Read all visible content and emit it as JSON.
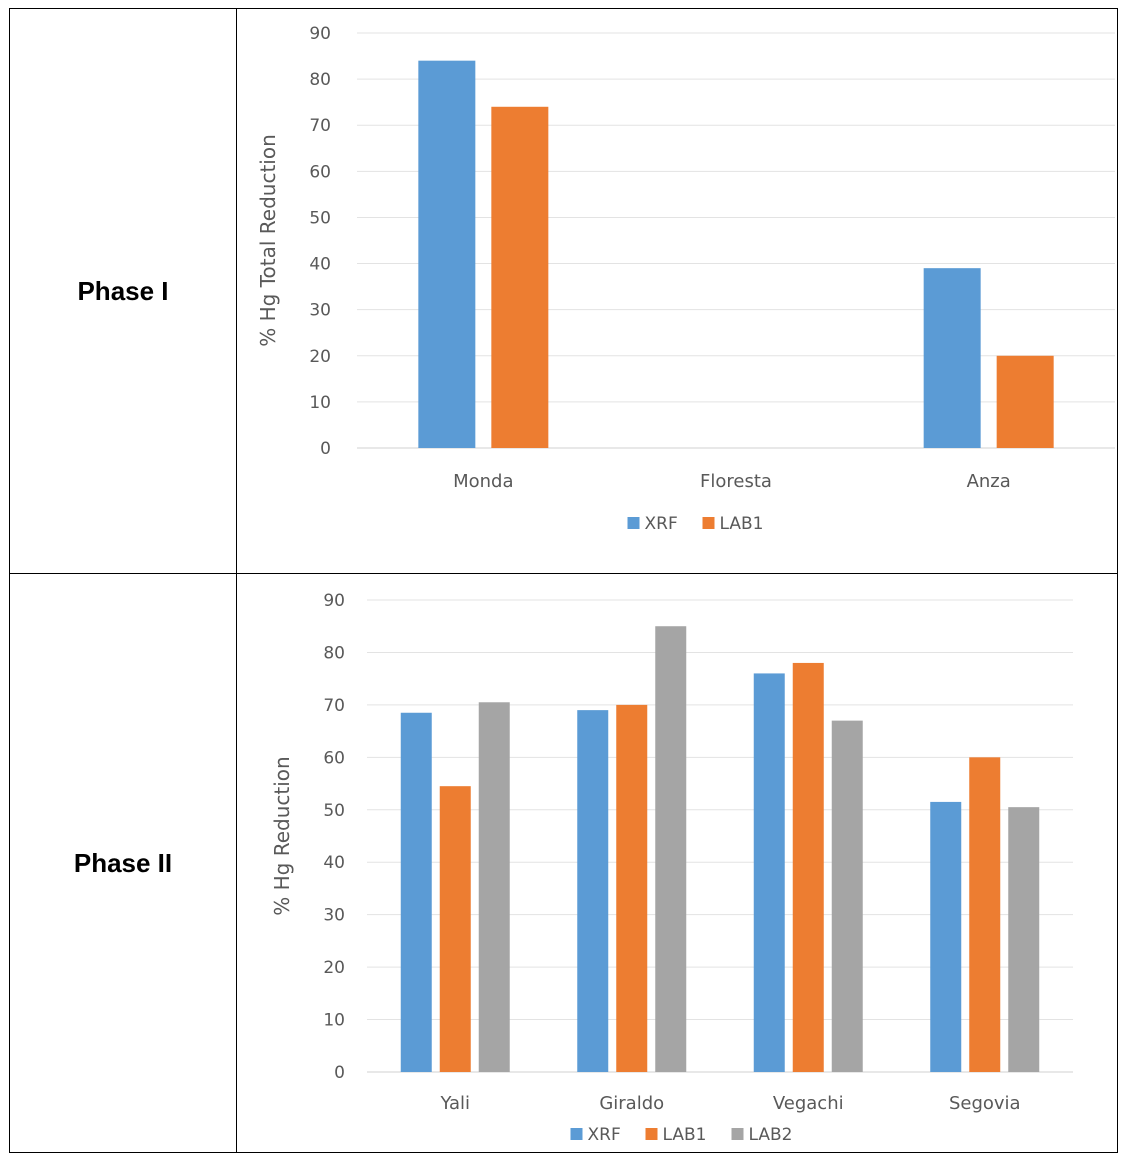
{
  "rows": [
    {
      "label": "Phase I"
    },
    {
      "label": "Phase II"
    }
  ],
  "chart_data": [
    {
      "type": "bar",
      "categories": [
        "Monda",
        "Floresta",
        "Anza"
      ],
      "series": [
        {
          "name": "XRF",
          "color": "#5B9BD5",
          "values": [
            84,
            null,
            39
          ]
        },
        {
          "name": "LAB1",
          "color": "#ED7D31",
          "values": [
            74,
            null,
            20
          ]
        }
      ],
      "ylabel": "% Hg Total Reduction",
      "ylim": [
        0,
        90
      ],
      "yticks": [
        0,
        10,
        20,
        30,
        40,
        50,
        60,
        70,
        80,
        90
      ],
      "grid": true,
      "legend": "bottom"
    },
    {
      "type": "bar",
      "categories": [
        "Yali",
        "Giraldo",
        "Vegachi",
        "Segovia"
      ],
      "series": [
        {
          "name": "XRF",
          "color": "#5B9BD5",
          "values": [
            68.5,
            69,
            76,
            51.5
          ]
        },
        {
          "name": "LAB1",
          "color": "#ED7D31",
          "values": [
            54.5,
            70,
            78,
            60
          ]
        },
        {
          "name": "LAB2",
          "color": "#A5A5A5",
          "values": [
            70.5,
            85,
            67,
            50.5
          ]
        }
      ],
      "ylabel": "% Hg Reduction",
      "ylim": [
        0,
        90
      ],
      "yticks": [
        0,
        10,
        20,
        30,
        40,
        50,
        60,
        70,
        80,
        90
      ],
      "grid": true,
      "legend": "bottom"
    }
  ]
}
